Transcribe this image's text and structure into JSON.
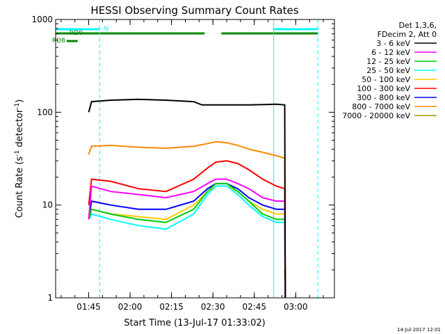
{
  "chart_data": {
    "type": "line",
    "title": "HESSI Observing Summary Count Rates",
    "xlabel": "Start Time (13-Jul-17 01:33:02)",
    "ylabel_main": "Count Rate (s",
    "ylabel_sup1": "-1",
    "ylabel_mid": " detector",
    "ylabel_sup2": "-1",
    "ylabel_end": ")",
    "y_scale": "log",
    "ylim": [
      1,
      1000
    ],
    "y_ticks": [
      {
        "value": 1,
        "label": "1"
      },
      {
        "value": 10,
        "label": "10"
      },
      {
        "value": 100,
        "label": "100"
      },
      {
        "value": 1000,
        "label": "1000"
      }
    ],
    "x_range_minutes": [
      0,
      101
    ],
    "x_ticks": [
      {
        "minute": 11.97,
        "label": "01:45"
      },
      {
        "minute": 26.97,
        "label": "02:00"
      },
      {
        "minute": 41.97,
        "label": "02:15"
      },
      {
        "minute": 56.97,
        "label": "02:30"
      },
      {
        "minute": 71.97,
        "label": "02:45"
      },
      {
        "minute": 86.97,
        "label": "03:00"
      }
    ],
    "legend_header": [
      "Det 1,3,6,",
      "FDecim 2, Att 0"
    ],
    "legend_placement": "right",
    "series": [
      {
        "name": "3 - 6 keV",
        "color": "#000000",
        "x": [
          12,
          13,
          20,
          30,
          40,
          50,
          53,
          60,
          70,
          80,
          83,
          83.2
        ],
        "y": [
          100,
          130,
          135,
          138,
          135,
          130,
          120,
          120,
          120,
          122,
          120,
          1
        ]
      },
      {
        "name": "6 - 12 keV",
        "color": "#ff00ff",
        "x": [
          12,
          13,
          20,
          30,
          40,
          50,
          55,
          58,
          62,
          66,
          70,
          75,
          80,
          83,
          83.2
        ],
        "y": [
          7,
          16,
          14,
          13,
          12,
          14,
          17,
          19,
          19,
          17,
          15,
          12,
          11,
          11,
          1
        ]
      },
      {
        "name": "12 - 25 keV",
        "color": "#00cc00",
        "x": [
          12,
          13,
          20,
          30,
          40,
          50,
          55,
          58,
          62,
          66,
          70,
          75,
          80,
          83,
          83.2
        ],
        "y": [
          7,
          9,
          8,
          7,
          6.5,
          9,
          14,
          17,
          17,
          14,
          11,
          8,
          7,
          7,
          1
        ]
      },
      {
        "name": "25 - 50 keV",
        "color": "#00ffff",
        "x": [
          12,
          13,
          20,
          30,
          40,
          50,
          55,
          58,
          62,
          66,
          70,
          75,
          80,
          83,
          83.2
        ],
        "y": [
          7,
          8,
          7,
          6,
          5.5,
          8,
          13,
          16,
          16,
          13,
          10,
          7.5,
          6.5,
          6.5,
          1
        ]
      },
      {
        "name": "50 - 100 keV",
        "color": "#ffcc00",
        "x": [
          12,
          13,
          20,
          30,
          40,
          50,
          55,
          58,
          62,
          66,
          70,
          75,
          80,
          83,
          83.2
        ],
        "y": [
          7,
          9,
          8,
          7.5,
          7,
          10,
          14,
          16,
          16,
          14,
          11,
          9,
          8,
          8,
          1
        ]
      },
      {
        "name": "100 - 300 keV",
        "color": "#ff0000",
        "x": [
          12,
          13,
          20,
          30,
          40,
          50,
          55,
          58,
          62,
          66,
          70,
          75,
          80,
          83,
          83.2
        ],
        "y": [
          10,
          19,
          18,
          15,
          14,
          19,
          25,
          29,
          30,
          28,
          24,
          19,
          16,
          15,
          1
        ]
      },
      {
        "name": "300 - 800 keV",
        "color": "#0000ff",
        "x": [
          12,
          13,
          20,
          30,
          40,
          50,
          55,
          58,
          62,
          66,
          70,
          75,
          80,
          83,
          83.2
        ],
        "y": [
          7,
          11,
          10,
          9,
          9,
          11,
          15,
          17,
          17,
          15,
          12,
          10,
          9,
          9,
          1
        ]
      },
      {
        "name": "800 - 7000 keV",
        "color": "#ff8800",
        "x": [
          12,
          13,
          20,
          30,
          40,
          50,
          55,
          58,
          62,
          66,
          70,
          75,
          80,
          83,
          83.2
        ],
        "y": [
          35,
          43,
          44,
          42,
          41,
          43,
          46,
          48,
          47,
          44,
          40,
          37,
          34,
          32,
          1
        ]
      },
      {
        "name": "7000 - 20000 keV",
        "color": "#999900",
        "x": [
          83,
          83.2
        ],
        "y": [
          2,
          1
        ]
      }
    ],
    "flag_bars": [
      {
        "label": "N",
        "color": "#00ffff",
        "row": 1,
        "segments": [
          [
            0,
            16
          ],
          [
            79,
            95
          ]
        ]
      },
      {
        "label": "RD0",
        "color": "#008800",
        "row": 2,
        "segments": [
          [
            0,
            54
          ],
          [
            60,
            95
          ]
        ]
      },
      {
        "label": "RD8",
        "color": "#008800",
        "row": 3,
        "segments": [
          [
            4,
            8
          ]
        ]
      }
    ],
    "vlines": [
      {
        "minute": 0,
        "style": "solid"
      },
      {
        "minute": 16,
        "style": "dashed"
      },
      {
        "minute": 79,
        "style": "solid"
      },
      {
        "minute": 95,
        "style": "dashed"
      }
    ],
    "footer_date": "14-Jul-2017 12:01"
  }
}
